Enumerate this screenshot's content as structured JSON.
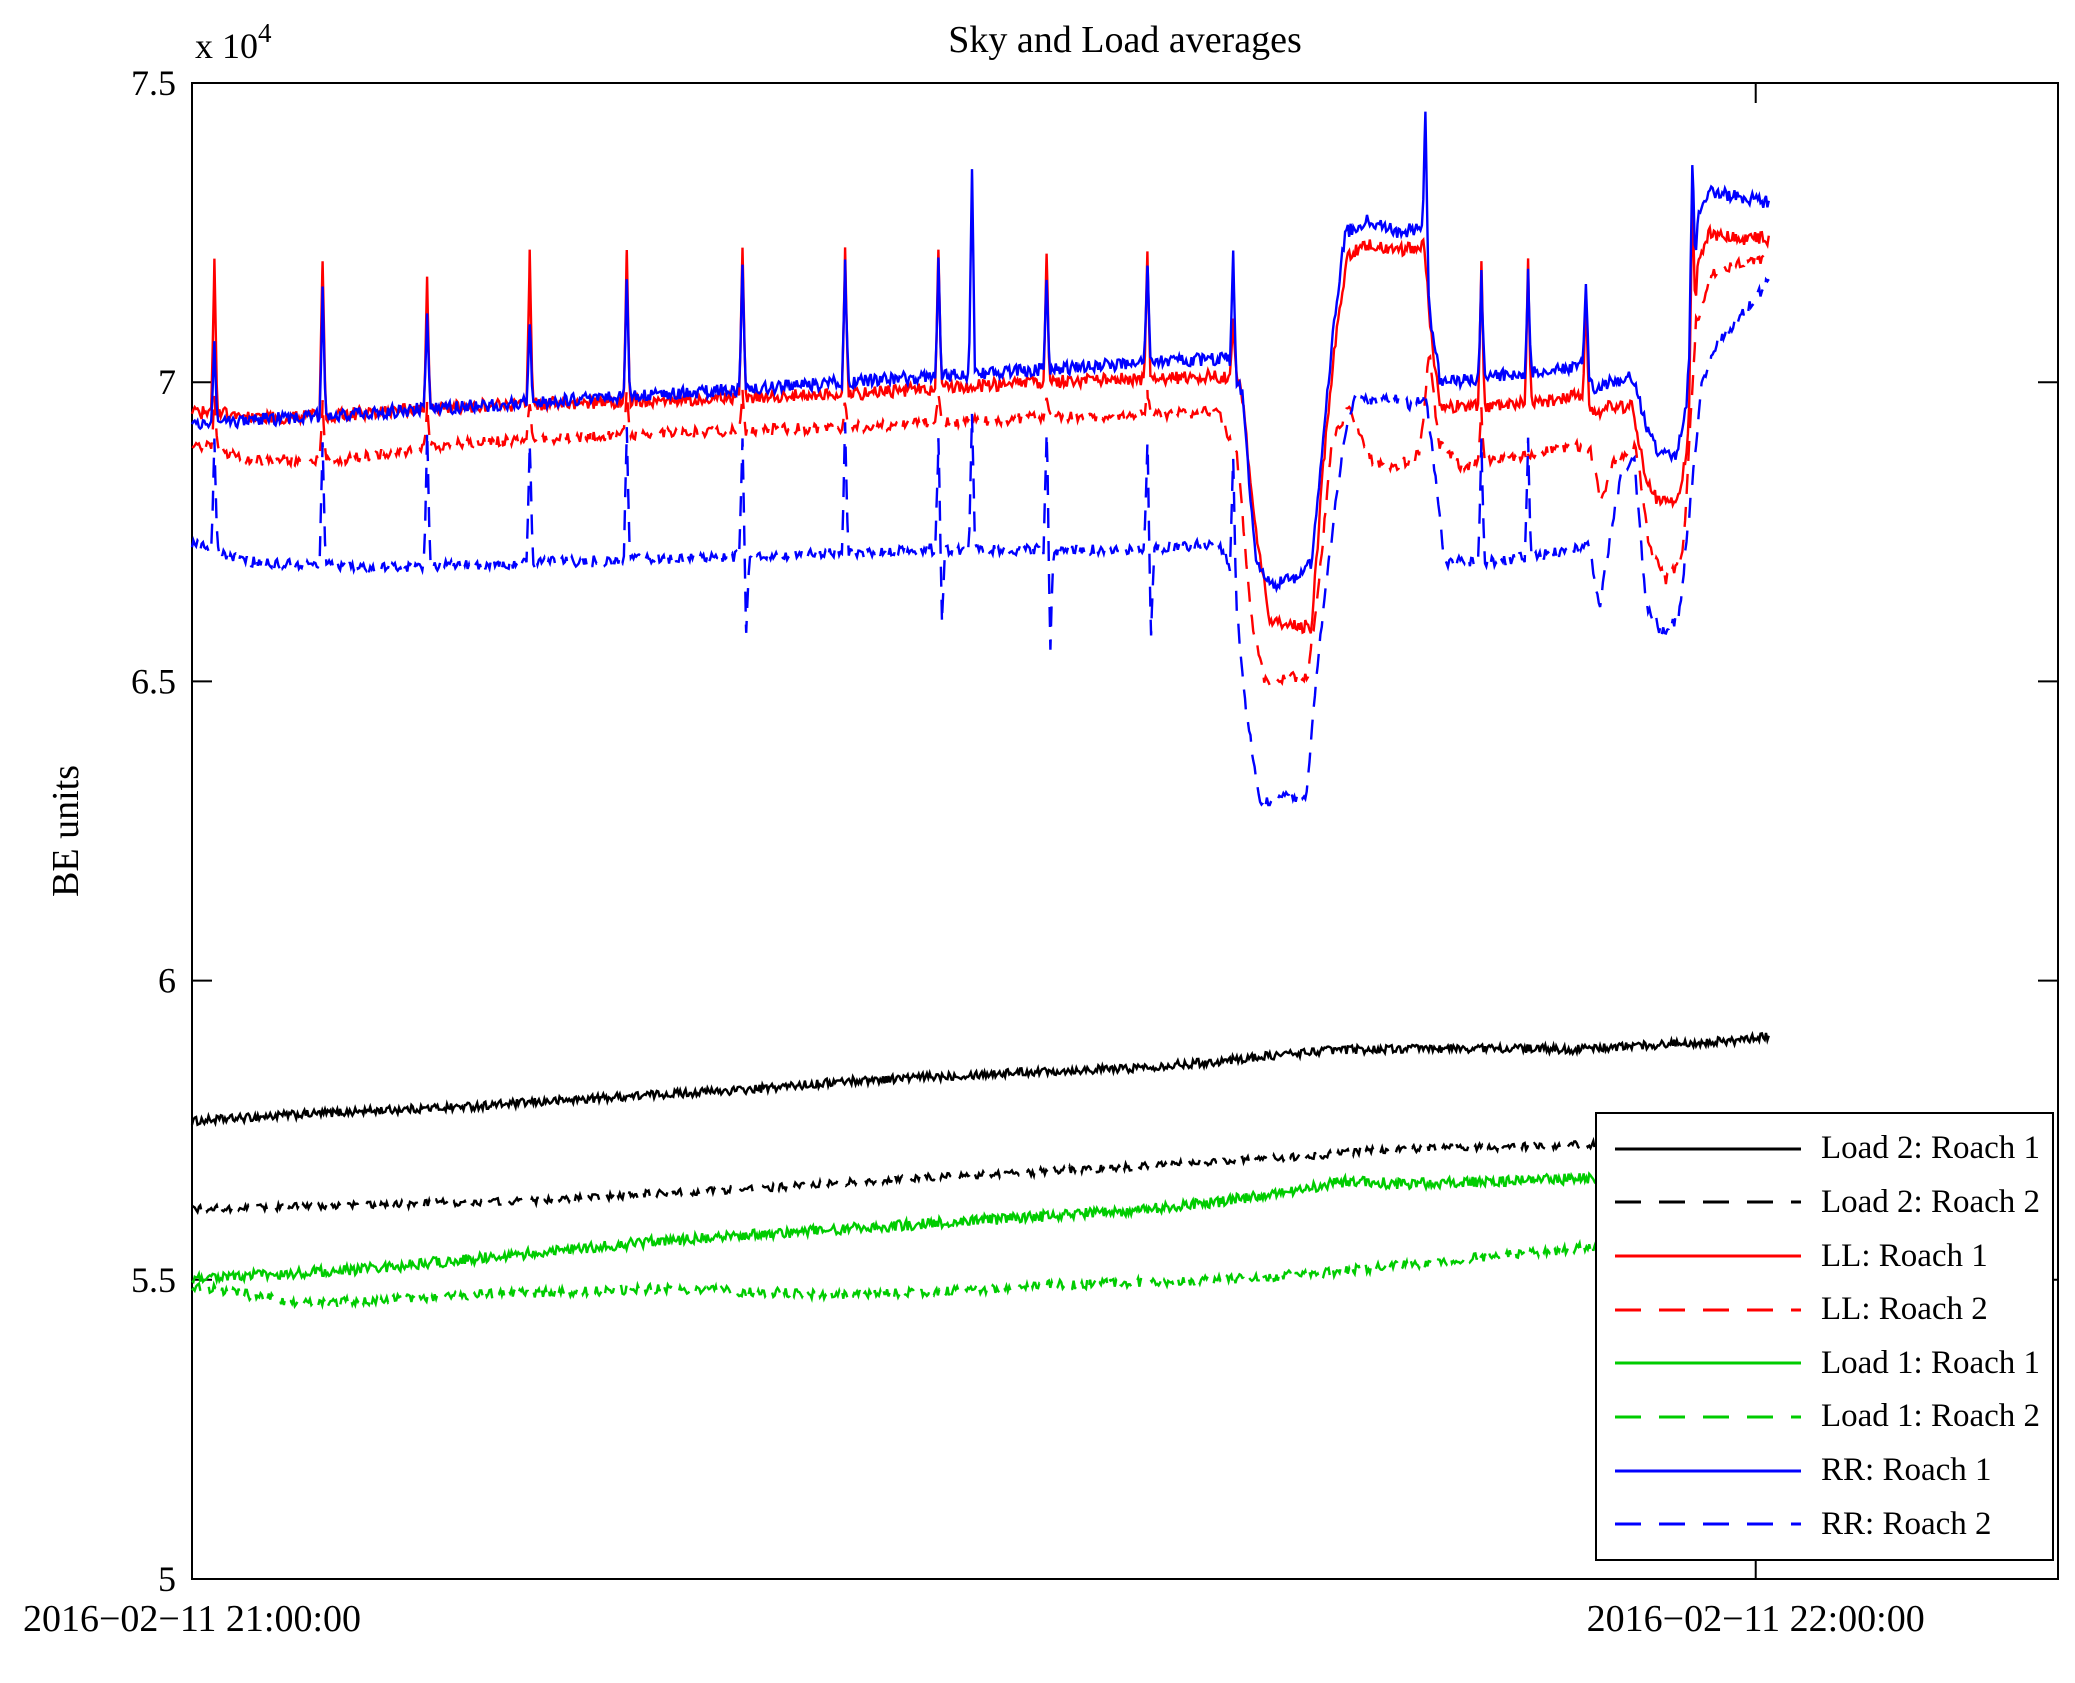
{
  "chart_data": {
    "type": "line",
    "title": "Sky and Load averages",
    "xlabel": "",
    "ylabel": "BE units",
    "y_scale_prefix": "x 10",
    "y_scale_exponent": "4",
    "ylim": [
      5.0,
      7.5
    ],
    "y_ticks": [
      5,
      5.5,
      6,
      6.5,
      7,
      7.5
    ],
    "x_ticks": [
      {
        "pos": 0.0,
        "label": "2016−02−11 21:00:00"
      },
      {
        "pos": 0.838,
        "label": "2016−02−11 22:00:00"
      }
    ],
    "x_data_end": 0.845,
    "grid": false,
    "legend_position": "bottom-right",
    "series": [
      {
        "id": "load2-1",
        "label": "Load 2: Roach 1",
        "color": "#000000",
        "dashed": false,
        "noise": 0.007,
        "keypoints": [
          [
            0,
            5.765
          ],
          [
            0.05,
            5.775
          ],
          [
            0.1,
            5.783
          ],
          [
            0.15,
            5.79
          ],
          [
            0.2,
            5.8
          ],
          [
            0.25,
            5.81
          ],
          [
            0.3,
            5.818
          ],
          [
            0.35,
            5.832
          ],
          [
            0.4,
            5.84
          ],
          [
            0.45,
            5.848
          ],
          [
            0.5,
            5.853
          ],
          [
            0.55,
            5.865
          ],
          [
            0.58,
            5.875
          ],
          [
            0.61,
            5.884
          ],
          [
            0.65,
            5.886
          ],
          [
            0.7,
            5.887
          ],
          [
            0.74,
            5.885
          ],
          [
            0.77,
            5.89
          ],
          [
            0.8,
            5.896
          ],
          [
            0.83,
            5.9
          ],
          [
            0.845,
            5.907
          ]
        ]
      },
      {
        "id": "load2-2",
        "label": "Load 2: Roach 2",
        "color": "#000000",
        "dashed": true,
        "noise": 0.006,
        "keypoints": [
          [
            0,
            5.618
          ],
          [
            0.05,
            5.622
          ],
          [
            0.1,
            5.626
          ],
          [
            0.15,
            5.63
          ],
          [
            0.2,
            5.634
          ],
          [
            0.25,
            5.645
          ],
          [
            0.3,
            5.652
          ],
          [
            0.35,
            5.663
          ],
          [
            0.4,
            5.672
          ],
          [
            0.45,
            5.68
          ],
          [
            0.5,
            5.688
          ],
          [
            0.55,
            5.697
          ],
          [
            0.6,
            5.707
          ],
          [
            0.63,
            5.716
          ],
          [
            0.66,
            5.72
          ],
          [
            0.7,
            5.722
          ],
          [
            0.75,
            5.726
          ],
          [
            0.8,
            5.73
          ],
          [
            0.845,
            5.738
          ]
        ]
      },
      {
        "id": "ll-1",
        "label": "LL: Roach 1",
        "color": "#ff0000",
        "dashed": false,
        "noise": 0.011,
        "keypoints": [
          [
            0,
            6.95
          ],
          [
            0.05,
            6.94
          ],
          [
            0.15,
            6.96
          ],
          [
            0.25,
            6.97
          ],
          [
            0.35,
            6.98
          ],
          [
            0.45,
            7.0
          ],
          [
            0.55,
            7.01
          ],
          [
            0.562,
            7.0
          ],
          [
            0.57,
            6.75
          ],
          [
            0.578,
            6.6
          ],
          [
            0.6,
            6.59
          ],
          [
            0.606,
            6.85
          ],
          [
            0.612,
            7.05
          ],
          [
            0.619,
            7.21
          ],
          [
            0.63,
            7.23
          ],
          [
            0.648,
            7.22
          ],
          [
            0.66,
            7.23
          ],
          [
            0.665,
            7.05
          ],
          [
            0.669,
            6.96
          ],
          [
            0.7,
            6.96
          ],
          [
            0.73,
            6.97
          ],
          [
            0.745,
            6.98
          ],
          [
            0.752,
            6.95
          ],
          [
            0.76,
            6.96
          ],
          [
            0.772,
            6.96
          ],
          [
            0.779,
            6.84
          ],
          [
            0.786,
            6.8
          ],
          [
            0.796,
            6.8
          ],
          [
            0.801,
            6.88
          ],
          [
            0.807,
            7.2
          ],
          [
            0.813,
            7.25
          ],
          [
            0.83,
            7.24
          ],
          [
            0.845,
            7.24
          ]
        ]
      },
      {
        "id": "ll-2",
        "label": "LL: Roach 2",
        "color": "#ff0000",
        "dashed": true,
        "noise": 0.009,
        "keypoints": [
          [
            0,
            6.9
          ],
          [
            0.03,
            6.87
          ],
          [
            0.08,
            6.87
          ],
          [
            0.15,
            6.9
          ],
          [
            0.25,
            6.915
          ],
          [
            0.35,
            6.925
          ],
          [
            0.45,
            6.94
          ],
          [
            0.55,
            6.95
          ],
          [
            0.56,
            6.88
          ],
          [
            0.568,
            6.6
          ],
          [
            0.575,
            6.5
          ],
          [
            0.598,
            6.51
          ],
          [
            0.605,
            6.7
          ],
          [
            0.611,
            6.9
          ],
          [
            0.62,
            6.96
          ],
          [
            0.632,
            6.87
          ],
          [
            0.645,
            6.86
          ],
          [
            0.658,
            6.88
          ],
          [
            0.663,
            7.05
          ],
          [
            0.668,
            6.9
          ],
          [
            0.68,
            6.86
          ],
          [
            0.7,
            6.87
          ],
          [
            0.72,
            6.88
          ],
          [
            0.74,
            6.895
          ],
          [
            0.749,
            6.89
          ],
          [
            0.755,
            6.8
          ],
          [
            0.762,
            6.87
          ],
          [
            0.774,
            6.89
          ],
          [
            0.781,
            6.72
          ],
          [
            0.79,
            6.67
          ],
          [
            0.799,
            6.71
          ],
          [
            0.806,
            7.1
          ],
          [
            0.815,
            7.18
          ],
          [
            0.83,
            7.2
          ],
          [
            0.845,
            7.21
          ]
        ]
      },
      {
        "id": "load1-1",
        "label": "Load 1: Roach 1",
        "color": "#00cc00",
        "dashed": false,
        "noise": 0.009,
        "keypoints": [
          [
            0,
            5.505
          ],
          [
            0.05,
            5.51
          ],
          [
            0.1,
            5.52
          ],
          [
            0.15,
            5.535
          ],
          [
            0.2,
            5.55
          ],
          [
            0.25,
            5.565
          ],
          [
            0.3,
            5.575
          ],
          [
            0.35,
            5.585
          ],
          [
            0.4,
            5.595
          ],
          [
            0.45,
            5.605
          ],
          [
            0.5,
            5.615
          ],
          [
            0.55,
            5.63
          ],
          [
            0.6,
            5.655
          ],
          [
            0.62,
            5.665
          ],
          [
            0.65,
            5.66
          ],
          [
            0.7,
            5.665
          ],
          [
            0.75,
            5.67
          ],
          [
            0.8,
            5.675
          ],
          [
            0.845,
            5.682
          ]
        ]
      },
      {
        "id": "load1-2",
        "label": "Load 1: Roach 2",
        "color": "#00cc00",
        "dashed": true,
        "noise": 0.008,
        "keypoints": [
          [
            0,
            5.49
          ],
          [
            0.03,
            5.475
          ],
          [
            0.06,
            5.46
          ],
          [
            0.1,
            5.465
          ],
          [
            0.15,
            5.475
          ],
          [
            0.2,
            5.48
          ],
          [
            0.25,
            5.485
          ],
          [
            0.3,
            5.48
          ],
          [
            0.35,
            5.475
          ],
          [
            0.4,
            5.48
          ],
          [
            0.45,
            5.49
          ],
          [
            0.5,
            5.495
          ],
          [
            0.55,
            5.5
          ],
          [
            0.6,
            5.51
          ],
          [
            0.65,
            5.525
          ],
          [
            0.7,
            5.54
          ],
          [
            0.75,
            5.555
          ],
          [
            0.78,
            5.57
          ],
          [
            0.81,
            5.585
          ],
          [
            0.83,
            5.6
          ],
          [
            0.845,
            5.615
          ]
        ]
      },
      {
        "id": "rr-1",
        "label": "RR: Roach 1",
        "color": "#0000ff",
        "dashed": false,
        "noise": 0.011,
        "keypoints": [
          [
            0,
            6.93
          ],
          [
            0.1,
            6.95
          ],
          [
            0.2,
            6.97
          ],
          [
            0.3,
            6.99
          ],
          [
            0.4,
            7.01
          ],
          [
            0.5,
            7.03
          ],
          [
            0.555,
            7.04
          ],
          [
            0.563,
            6.98
          ],
          [
            0.57,
            6.7
          ],
          [
            0.578,
            6.66
          ],
          [
            0.59,
            6.67
          ],
          [
            0.6,
            6.7
          ],
          [
            0.606,
            6.9
          ],
          [
            0.612,
            7.1
          ],
          [
            0.618,
            7.25
          ],
          [
            0.63,
            7.27
          ],
          [
            0.648,
            7.25
          ],
          [
            0.659,
            7.26
          ],
          [
            0.664,
            7.1
          ],
          [
            0.669,
            7.0
          ],
          [
            0.7,
            7.01
          ],
          [
            0.73,
            7.02
          ],
          [
            0.745,
            7.03
          ],
          [
            0.752,
            6.99
          ],
          [
            0.76,
            7.0
          ],
          [
            0.772,
            7.01
          ],
          [
            0.779,
            6.93
          ],
          [
            0.786,
            6.88
          ],
          [
            0.796,
            6.88
          ],
          [
            0.801,
            6.97
          ],
          [
            0.807,
            7.28
          ],
          [
            0.813,
            7.32
          ],
          [
            0.83,
            7.31
          ],
          [
            0.845,
            7.3
          ]
        ]
      },
      {
        "id": "rr-2",
        "label": "RR: Roach 2",
        "color": "#0000ff",
        "dashed": true,
        "noise": 0.009,
        "keypoints": [
          [
            0,
            6.73
          ],
          [
            0.03,
            6.7
          ],
          [
            0.1,
            6.69
          ],
          [
            0.2,
            6.7
          ],
          [
            0.3,
            6.71
          ],
          [
            0.4,
            6.72
          ],
          [
            0.5,
            6.72
          ],
          [
            0.55,
            6.73
          ],
          [
            0.558,
            6.68
          ],
          [
            0.565,
            6.45
          ],
          [
            0.572,
            6.3
          ],
          [
            0.597,
            6.31
          ],
          [
            0.604,
            6.55
          ],
          [
            0.61,
            6.72
          ],
          [
            0.617,
            6.9
          ],
          [
            0.623,
            6.97
          ],
          [
            0.645,
            6.97
          ],
          [
            0.655,
            6.96
          ],
          [
            0.661,
            6.98
          ],
          [
            0.666,
            6.85
          ],
          [
            0.671,
            6.7
          ],
          [
            0.7,
            6.7
          ],
          [
            0.72,
            6.71
          ],
          [
            0.74,
            6.72
          ],
          [
            0.749,
            6.73
          ],
          [
            0.754,
            6.62
          ],
          [
            0.759,
            6.72
          ],
          [
            0.766,
            6.85
          ],
          [
            0.773,
            6.87
          ],
          [
            0.779,
            6.63
          ],
          [
            0.788,
            6.58
          ],
          [
            0.797,
            6.61
          ],
          [
            0.803,
            6.8
          ],
          [
            0.809,
            7.0
          ],
          [
            0.818,
            7.07
          ],
          [
            0.833,
            7.12
          ],
          [
            0.845,
            7.17
          ]
        ]
      }
    ],
    "spikes": [
      {
        "x": 0.012,
        "peaks": {
          "ll-1": 7.2,
          "rr-1": 7.06,
          "ll-2": 6.97,
          "rr-2": 6.9
        }
      },
      {
        "x": 0.07,
        "peaks": {
          "ll-1": 7.21,
          "rr-1": 7.15,
          "ll-2": 6.97,
          "rr-2": 6.9
        }
      },
      {
        "x": 0.126,
        "peaks": {
          "ll-1": 7.18,
          "rr-1": 7.12,
          "ll-2": 6.96,
          "rr-2": 6.92
        }
      },
      {
        "x": 0.181,
        "peaks": {
          "ll-1": 7.22,
          "rr-1": 7.1,
          "ll-2": 6.97,
          "rr-2": 6.9
        }
      },
      {
        "x": 0.233,
        "peaks": {
          "ll-1": 7.22,
          "rr-1": 7.18,
          "ll-2": 6.98,
          "rr-2": 6.92
        }
      },
      {
        "x": 0.295,
        "peaks": {
          "ll-1": 7.23,
          "rr-1": 7.2,
          "ll-2": 6.98,
          "rr-2": 6.9
        }
      },
      {
        "x": 0.297,
        "peaks": {
          "rr-2": 6.58
        }
      },
      {
        "x": 0.35,
        "peaks": {
          "ll-1": 7.22,
          "rr-1": 7.2,
          "ll-2": 6.97,
          "rr-2": 6.93
        }
      },
      {
        "x": 0.4,
        "peaks": {
          "ll-1": 7.22,
          "rr-1": 7.2,
          "ll-2": 6.98,
          "rr-2": 6.9
        }
      },
      {
        "x": 0.402,
        "peaks": {
          "rr-2": 6.6
        }
      },
      {
        "x": 0.418,
        "peaks": {
          "rr-1": 7.35,
          "rr-2": 6.95
        }
      },
      {
        "x": 0.458,
        "peaks": {
          "ll-1": 7.22,
          "rr-1": 7.18,
          "ll-2": 6.98,
          "rr-2": 6.92
        }
      },
      {
        "x": 0.46,
        "peaks": {
          "rr-2": 6.56
        }
      },
      {
        "x": 0.512,
        "peaks": {
          "ll-1": 7.22,
          "rr-1": 7.2,
          "ll-2": 6.98,
          "rr-2": 6.9
        }
      },
      {
        "x": 0.514,
        "peaks": {
          "rr-2": 6.58
        }
      },
      {
        "x": 0.558,
        "peaks": {
          "ll-1": 7.1,
          "rr-1": 7.22,
          "rr-2": 6.88
        }
      },
      {
        "x": 0.661,
        "peaks": {
          "rr-1": 7.46
        }
      },
      {
        "x": 0.691,
        "peaks": {
          "ll-1": 7.2,
          "rr-1": 7.18,
          "ll-2": 6.95,
          "rr-2": 6.9
        }
      },
      {
        "x": 0.716,
        "peaks": {
          "ll-1": 7.2,
          "rr-1": 7.18,
          "rr-2": 6.9
        }
      },
      {
        "x": 0.747,
        "peaks": {
          "ll-1": 7.15,
          "rr-1": 7.17
        }
      },
      {
        "x": 0.804,
        "peaks": {
          "rr-1": 7.37,
          "ll-1": 7.3
        }
      }
    ]
  }
}
